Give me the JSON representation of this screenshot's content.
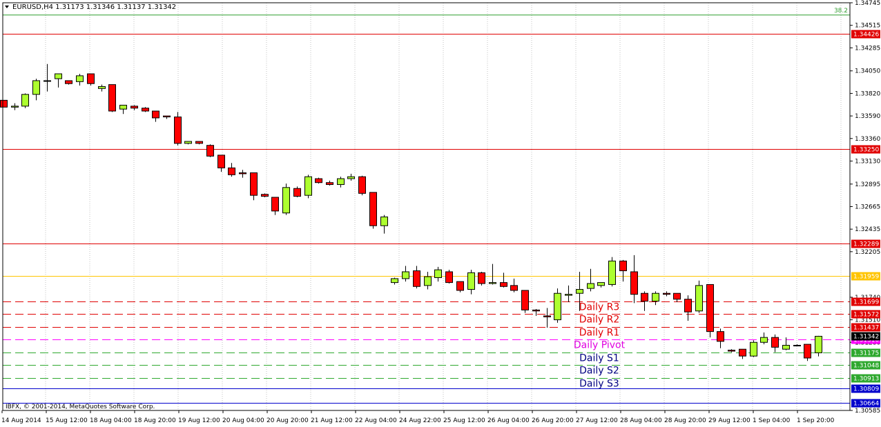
{
  "header": {
    "symbol": "EURUSD,H4",
    "ohlc": "1.31173 1.31346 1.31137 1.31342"
  },
  "footer": {
    "copyright": "IBFX, © 2001-2014, MetaQuotes Software Corp."
  },
  "colors": {
    "bull": "#adff2f",
    "bear": "#ff0000",
    "resistance": "#e00000",
    "support": "#2ea82e",
    "pivot": "#ff00ff",
    "yellow": "#ffc400",
    "blue": "#0000cc",
    "fib": "#2e9d2e"
  },
  "chart_data": {
    "type": "candlestick",
    "y_axis": {
      "ylim": [
        1.30585,
        1.34745
      ],
      "ticks": [
        "1.34745",
        "1.34515",
        "1.34285",
        "1.34050",
        "1.33820",
        "1.33590",
        "1.33360",
        "1.33130",
        "1.32895",
        "1.32665",
        "1.32435",
        "1.32205",
        "1.31740",
        "1.31510",
        "1.31280",
        "1.30585"
      ]
    },
    "x_axis": {
      "ticks": [
        "14 Aug 2014",
        "15 Aug 12:00",
        "18 Aug 04:00",
        "18 Aug 20:00",
        "19 Aug 12:00",
        "20 Aug 04:00",
        "20 Aug 20:00",
        "21 Aug 12:00",
        "22 Aug 04:00",
        "24 Aug 22:00",
        "25 Aug 12:00",
        "26 Aug 04:00",
        "26 Aug 20:00",
        "27 Aug 12:00",
        "28 Aug 04:00",
        "28 Aug 20:00",
        "29 Aug 12:00",
        "1 Sep 04:00",
        "1 Sep 20:00"
      ]
    },
    "candles": [
      [
        1.3375,
        1.3375,
        1.3368,
        1.3368
      ],
      [
        1.3368,
        1.3372,
        1.3365,
        1.3369
      ],
      [
        1.3369,
        1.3382,
        1.3367,
        1.3381
      ],
      [
        1.3381,
        1.3397,
        1.3375,
        1.3395
      ],
      [
        1.3395,
        1.3412,
        1.3384,
        1.3395
      ],
      [
        1.3397,
        1.3402,
        1.3388,
        1.3402
      ],
      [
        1.3395,
        1.3395,
        1.3391,
        1.3392
      ],
      [
        1.3394,
        1.3402,
        1.339,
        1.34
      ],
      [
        1.3402,
        1.3402,
        1.339,
        1.3392
      ],
      [
        1.3387,
        1.3391,
        1.3384,
        1.3389
      ],
      [
        1.3391,
        1.3391,
        1.3363,
        1.3364
      ],
      [
        1.3366,
        1.337,
        1.3361,
        1.337
      ],
      [
        1.3369,
        1.337,
        1.3365,
        1.3367
      ],
      [
        1.3367,
        1.3368,
        1.3363,
        1.3364
      ],
      [
        1.3364,
        1.3364,
        1.3353,
        1.3357
      ],
      [
        1.3359,
        1.3359,
        1.3356,
        1.3358
      ],
      [
        1.3358,
        1.3363,
        1.3329,
        1.3331
      ],
      [
        1.3331,
        1.3333,
        1.333,
        1.3333
      ],
      [
        1.3333,
        1.3333,
        1.333,
        1.3331
      ],
      [
        1.3329,
        1.333,
        1.3317,
        1.3318
      ],
      [
        1.3319,
        1.3319,
        1.3302,
        1.3306
      ],
      [
        1.3306,
        1.3311,
        1.3297,
        1.3299
      ],
      [
        1.3301,
        1.3304,
        1.3296,
        1.33
      ],
      [
        1.3301,
        1.3301,
        1.3273,
        1.3278
      ],
      [
        1.3279,
        1.328,
        1.3276,
        1.3277
      ],
      [
        1.3276,
        1.3276,
        1.3258,
        1.3262
      ],
      [
        1.326,
        1.329,
        1.3258,
        1.3286
      ],
      [
        1.3285,
        1.3287,
        1.3276,
        1.3277
      ],
      [
        1.3278,
        1.3299,
        1.3275,
        1.3297
      ],
      [
        1.3295,
        1.3296,
        1.329,
        1.3291
      ],
      [
        1.3291,
        1.3293,
        1.3288,
        1.3289
      ],
      [
        1.3289,
        1.3297,
        1.3286,
        1.3295
      ],
      [
        1.3295,
        1.33,
        1.3293,
        1.3297
      ],
      [
        1.3297,
        1.3298,
        1.3278,
        1.328
      ],
      [
        1.3281,
        1.3281,
        1.3244,
        1.3247
      ],
      [
        1.3247,
        1.3258,
        1.3239,
        1.3256
      ],
      [
        1.3189,
        1.3194,
        1.3187,
        1.3193
      ],
      [
        1.3193,
        1.3206,
        1.319,
        1.32
      ],
      [
        1.3201,
        1.3206,
        1.3183,
        1.3185
      ],
      [
        1.3186,
        1.32,
        1.3182,
        1.3195
      ],
      [
        1.3194,
        1.3205,
        1.319,
        1.3202
      ],
      [
        1.32,
        1.3202,
        1.3188,
        1.3189
      ],
      [
        1.319,
        1.319,
        1.3179,
        1.3181
      ],
      [
        1.3182,
        1.3202,
        1.3177,
        1.3199
      ],
      [
        1.3199,
        1.32,
        1.3186,
        1.3188
      ],
      [
        1.3188,
        1.3208,
        1.3187,
        1.3189
      ],
      [
        1.3189,
        1.3199,
        1.3184,
        1.3185
      ],
      [
        1.3186,
        1.3193,
        1.3179,
        1.3181
      ],
      [
        1.3181,
        1.3181,
        1.3158,
        1.3161
      ],
      [
        1.3161,
        1.3162,
        1.3155,
        1.316
      ],
      [
        1.3155,
        1.3163,
        1.3143,
        1.3154
      ],
      [
        1.3151,
        1.3183,
        1.3148,
        1.3178
      ],
      [
        1.3176,
        1.3186,
        1.3169,
        1.3177
      ],
      [
        1.3178,
        1.32,
        1.316,
        1.3182
      ],
      [
        1.3183,
        1.3203,
        1.318,
        1.3188
      ],
      [
        1.3186,
        1.3189,
        1.3184,
        1.3189
      ],
      [
        1.3187,
        1.3215,
        1.3185,
        1.3211
      ],
      [
        1.3211,
        1.3212,
        1.319,
        1.3201
      ],
      [
        1.32,
        1.3217,
        1.3168,
        1.3177
      ],
      [
        1.3178,
        1.318,
        1.316,
        1.317
      ],
      [
        1.317,
        1.318,
        1.3166,
        1.3178
      ],
      [
        1.3178,
        1.318,
        1.3175,
        1.3177
      ],
      [
        1.3178,
        1.3178,
        1.3169,
        1.3172
      ],
      [
        1.3172,
        1.3176,
        1.315,
        1.3159
      ],
      [
        1.316,
        1.3191,
        1.3158,
        1.3186
      ],
      [
        1.3187,
        1.3187,
        1.3133,
        1.3139
      ],
      [
        1.3139,
        1.3142,
        1.3122,
        1.3129
      ],
      [
        1.312,
        1.3121,
        1.3118,
        1.3119
      ],
      [
        1.3121,
        1.3121,
        1.3111,
        1.3114
      ],
      [
        1.3114,
        1.313,
        1.3113,
        1.3128
      ],
      [
        1.3128,
        1.3138,
        1.3126,
        1.3133
      ],
      [
        1.3133,
        1.3136,
        1.3118,
        1.3123
      ],
      [
        1.3121,
        1.3133,
        1.312,
        1.3125
      ],
      [
        1.3125,
        1.3126,
        1.3124,
        1.3125
      ],
      [
        1.3126,
        1.3126,
        1.3109,
        1.3112
      ],
      [
        1.31173,
        1.31346,
        1.31137,
        1.31342
      ]
    ],
    "levels": [
      {
        "price": "1.34426",
        "color": "red",
        "style": "solid",
        "label": ""
      },
      {
        "price": "1.33250",
        "color": "red",
        "style": "solid",
        "label": ""
      },
      {
        "price": "1.32289",
        "color": "red",
        "style": "solid",
        "label": ""
      },
      {
        "price": "1.31959",
        "color": "yellow",
        "style": "solid",
        "label": ""
      },
      {
        "price": "1.31699",
        "color": "red",
        "style": "dash",
        "label": "Daily R3"
      },
      {
        "price": "1.31572",
        "color": "red",
        "style": "dash",
        "label": "Daily R2"
      },
      {
        "price": "1.31437",
        "color": "red",
        "style": "dash",
        "label": "Daily R1"
      },
      {
        "price": "1.31310",
        "color": "pivot",
        "style": "dash",
        "label": "Daily Pivot"
      },
      {
        "price": "1.31175",
        "color": "green",
        "style": "dash",
        "label": "Daily S1"
      },
      {
        "price": "1.31048",
        "color": "green",
        "style": "dash",
        "label": "Daily S2"
      },
      {
        "price": "1.30913",
        "color": "green",
        "style": "dash",
        "label": "Daily S3"
      },
      {
        "price": "1.30809",
        "color": "blue",
        "style": "solid",
        "label": ""
      },
      {
        "price": "1.30664",
        "color": "blue",
        "style": "solid",
        "label": ""
      }
    ],
    "current_price": "1.31342",
    "fib_level": {
      "price": 1.3462,
      "label": "38.2"
    }
  }
}
